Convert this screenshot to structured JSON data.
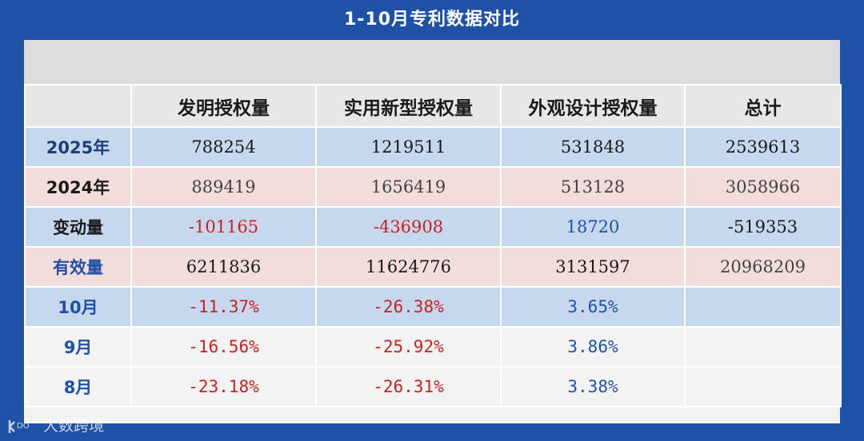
{
  "title": "1-10月专利数据对比",
  "table": {
    "headers": [
      "",
      "发明授权量",
      "实用新型授权量",
      "外观设计授权量",
      "总计"
    ],
    "rows": [
      {
        "label": "2025年",
        "cells": [
          "788254",
          "1219511",
          "531848",
          "2539613"
        ]
      },
      {
        "label": "2024年",
        "cells": [
          "889419",
          "1656419",
          "513128",
          "3058966"
        ]
      },
      {
        "label": "变动量",
        "cells": [
          "-101165",
          "-436908",
          "18720",
          "-519353"
        ]
      },
      {
        "label": "有效量",
        "cells": [
          "6211836",
          "11624776",
          "3131597",
          "20968209"
        ]
      },
      {
        "label": "10月",
        "cells": [
          "-11.37%",
          "-26.38%",
          "3.65%",
          ""
        ]
      },
      {
        "label": "9月",
        "cells": [
          "-16.56%",
          "-25.92%",
          "3.86%",
          ""
        ]
      },
      {
        "label": "8月",
        "cells": [
          "-23.18%",
          "-26.31%",
          "3.38%",
          ""
        ]
      }
    ]
  },
  "watermark": {
    "text": "大数跨境",
    "logo_text": "DO"
  },
  "colors": {
    "background": "#1f52a6",
    "row_blue": "#c5d8ee",
    "row_pink": "#f2dcdc",
    "negative": "#cc1f1f",
    "positive": "#1f52a6"
  }
}
